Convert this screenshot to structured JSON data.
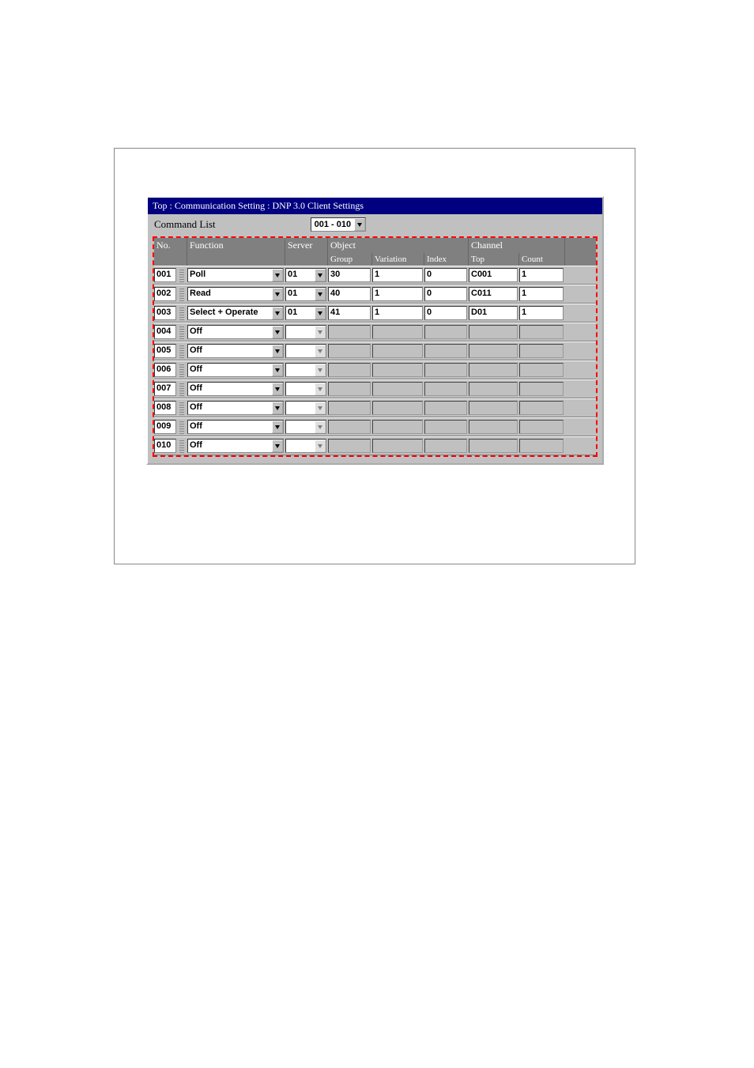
{
  "colors": {
    "titlebar_bg": "#000080",
    "titlebar_fg": "#ffffff",
    "panel_bg": "#c0c0c0",
    "header_bg": "#808080",
    "header_fg": "#ffffff",
    "highlight_border": "#ff0000"
  },
  "window": {
    "title": "Top : Communication Setting : DNP 3.0 Client Settings"
  },
  "toolbar": {
    "label": "Command List",
    "range_value": "001 - 010"
  },
  "headers": {
    "no": "No.",
    "function": "Function",
    "server": "Server",
    "object": "Object",
    "group": "Group",
    "variation": "Variation",
    "index": "Index",
    "channel": "Channel",
    "top": "Top",
    "count": "Count"
  },
  "rows": [
    {
      "no": "001",
      "fn": "Poll",
      "srv": "01",
      "grp": "30",
      "var": "1",
      "idx": "0",
      "top": "C001",
      "cnt": "1",
      "active": true
    },
    {
      "no": "002",
      "fn": "Read",
      "srv": "01",
      "grp": "40",
      "var": "1",
      "idx": "0",
      "top": "C011",
      "cnt": "1",
      "active": true
    },
    {
      "no": "003",
      "fn": "Select + Operate",
      "srv": "01",
      "grp": "41",
      "var": "1",
      "idx": "0",
      "top": "D01",
      "cnt": "1",
      "active": true
    },
    {
      "no": "004",
      "fn": "Off",
      "srv": "",
      "grp": "",
      "var": "",
      "idx": "",
      "top": "",
      "cnt": "",
      "active": false
    },
    {
      "no": "005",
      "fn": "Off",
      "srv": "",
      "grp": "",
      "var": "",
      "idx": "",
      "top": "",
      "cnt": "",
      "active": false
    },
    {
      "no": "006",
      "fn": "Off",
      "srv": "",
      "grp": "",
      "var": "",
      "idx": "",
      "top": "",
      "cnt": "",
      "active": false
    },
    {
      "no": "007",
      "fn": "Off",
      "srv": "",
      "grp": "",
      "var": "",
      "idx": "",
      "top": "",
      "cnt": "",
      "active": false
    },
    {
      "no": "008",
      "fn": "Off",
      "srv": "",
      "grp": "",
      "var": "",
      "idx": "",
      "top": "",
      "cnt": "",
      "active": false
    },
    {
      "no": "009",
      "fn": "Off",
      "srv": "",
      "grp": "",
      "var": "",
      "idx": "",
      "top": "",
      "cnt": "",
      "active": false
    },
    {
      "no": "010",
      "fn": "Off",
      "srv": "",
      "grp": "",
      "var": "",
      "idx": "",
      "top": "",
      "cnt": "",
      "active": false
    }
  ]
}
